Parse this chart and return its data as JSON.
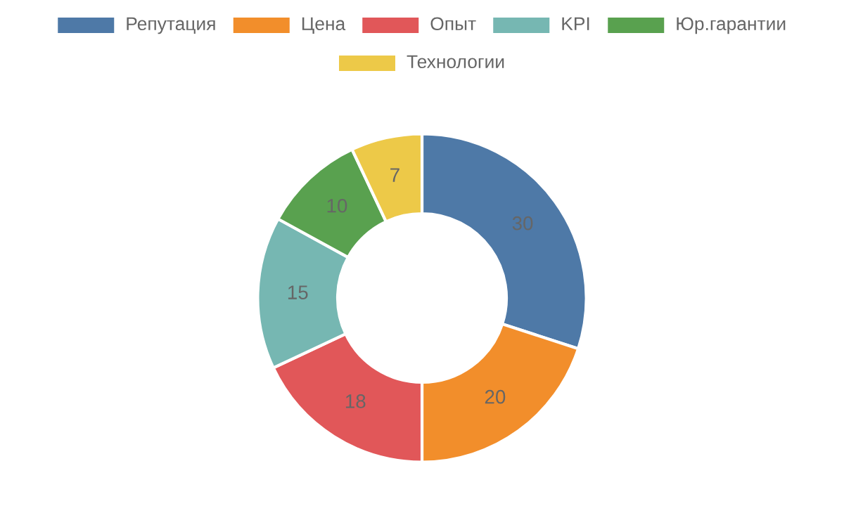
{
  "chart_data": {
    "type": "donut",
    "categories": [
      "Репутация",
      "Цена",
      "Опыт",
      "KPI",
      "Юр.гарантии",
      "Технологии"
    ],
    "values": [
      30,
      20,
      18,
      15,
      10,
      7
    ],
    "colors": [
      "#4e79a7",
      "#f28e2b",
      "#e15759",
      "#76b7b2",
      "#59a14f",
      "#edc948"
    ],
    "data_labels": true,
    "legend": "top"
  }
}
